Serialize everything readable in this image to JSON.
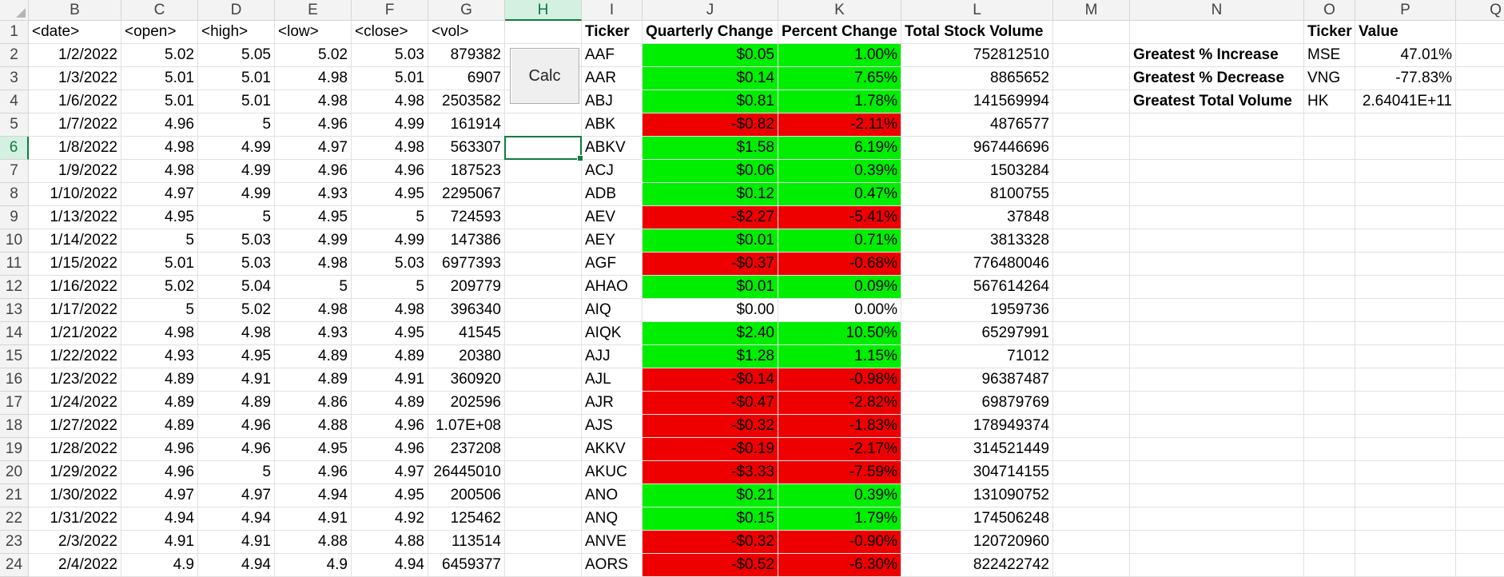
{
  "sheet": {
    "corner": "",
    "columns": [
      "B",
      "C",
      "D",
      "E",
      "F",
      "G",
      "H",
      "I",
      "J",
      "K",
      "L",
      "M",
      "N",
      "O",
      "P",
      "Q"
    ],
    "rows": [
      "1",
      "2",
      "3",
      "4",
      "5",
      "6",
      "7",
      "8",
      "9",
      "10",
      "11",
      "12",
      "13",
      "14",
      "15",
      "16",
      "17",
      "18",
      "19",
      "20",
      "21",
      "22",
      "23",
      "24"
    ],
    "active_column": "H",
    "active_row": "6",
    "active_cell": "H6",
    "headers": {
      "B": "<date>",
      "C": "<open>",
      "D": "<high>",
      "E": "<low>",
      "F": "<close>",
      "G": "<vol>",
      "I": "Ticker",
      "J": "Quarterly Change",
      "K": "Percent Change",
      "L": "Total Stock Volume",
      "O": "Ticker",
      "P": "Value"
    },
    "price_rows": [
      [
        "1/2/2022",
        "5.02",
        "5.05",
        "5.02",
        "5.03",
        "879382"
      ],
      [
        "1/3/2022",
        "5.01",
        "5.01",
        "4.98",
        "5.01",
        "6907"
      ],
      [
        "1/6/2022",
        "5.01",
        "5.01",
        "4.98",
        "4.98",
        "2503582"
      ],
      [
        "1/7/2022",
        "4.96",
        "5",
        "4.96",
        "4.99",
        "161914"
      ],
      [
        "1/8/2022",
        "4.98",
        "4.99",
        "4.97",
        "4.98",
        "563307"
      ],
      [
        "1/9/2022",
        "4.98",
        "4.99",
        "4.96",
        "4.96",
        "187523"
      ],
      [
        "1/10/2022",
        "4.97",
        "4.99",
        "4.93",
        "4.95",
        "2295067"
      ],
      [
        "1/13/2022",
        "4.95",
        "5",
        "4.95",
        "5",
        "724593"
      ],
      [
        "1/14/2022",
        "5",
        "5.03",
        "4.99",
        "4.99",
        "147386"
      ],
      [
        "1/15/2022",
        "5.01",
        "5.03",
        "4.98",
        "5.03",
        "6977393"
      ],
      [
        "1/16/2022",
        "5.02",
        "5.04",
        "5",
        "5",
        "209779"
      ],
      [
        "1/17/2022",
        "5",
        "5.02",
        "4.98",
        "4.98",
        "396340"
      ],
      [
        "1/21/2022",
        "4.98",
        "4.98",
        "4.93",
        "4.95",
        "41545"
      ],
      [
        "1/22/2022",
        "4.93",
        "4.95",
        "4.89",
        "4.89",
        "20380"
      ],
      [
        "1/23/2022",
        "4.89",
        "4.91",
        "4.89",
        "4.91",
        "360920"
      ],
      [
        "1/24/2022",
        "4.89",
        "4.89",
        "4.86",
        "4.89",
        "202596"
      ],
      [
        "1/27/2022",
        "4.89",
        "4.96",
        "4.88",
        "4.96",
        "1.07E+08"
      ],
      [
        "1/28/2022",
        "4.96",
        "4.96",
        "4.95",
        "4.96",
        "237208"
      ],
      [
        "1/29/2022",
        "4.96",
        "5",
        "4.96",
        "4.97",
        "26445010"
      ],
      [
        "1/30/2022",
        "4.97",
        "4.97",
        "4.94",
        "4.95",
        "200506"
      ],
      [
        "1/31/2022",
        "4.94",
        "4.94",
        "4.91",
        "4.92",
        "125462"
      ],
      [
        "2/3/2022",
        "4.91",
        "4.91",
        "4.88",
        "4.88",
        "113514"
      ],
      [
        "2/4/2022",
        "4.9",
        "4.94",
        "4.9",
        "4.94",
        "6459377"
      ]
    ],
    "summary_rows": [
      {
        "ticker": "AAF",
        "change": "$0.05",
        "percent": "1.00%",
        "volume": "752812510",
        "status": "pos"
      },
      {
        "ticker": "AAR",
        "change": "$0.14",
        "percent": "7.65%",
        "volume": "8865652",
        "status": "pos"
      },
      {
        "ticker": "ABJ",
        "change": "$0.81",
        "percent": "1.78%",
        "volume": "141569994",
        "status": "pos"
      },
      {
        "ticker": "ABK",
        "change": "-$0.82",
        "percent": "-2.11%",
        "volume": "4876577",
        "status": "neg"
      },
      {
        "ticker": "ABKV",
        "change": "$1.58",
        "percent": "6.19%",
        "volume": "967446696",
        "status": "pos"
      },
      {
        "ticker": "ACJ",
        "change": "$0.06",
        "percent": "0.39%",
        "volume": "1503284",
        "status": "pos"
      },
      {
        "ticker": "ADB",
        "change": "$0.12",
        "percent": "0.47%",
        "volume": "8100755",
        "status": "pos"
      },
      {
        "ticker": "AEV",
        "change": "-$2.27",
        "percent": "-5.41%",
        "volume": "37848",
        "status": "neg"
      },
      {
        "ticker": "AEY",
        "change": "$0.01",
        "percent": "0.71%",
        "volume": "3813328",
        "status": "pos"
      },
      {
        "ticker": "AGF",
        "change": "-$0.37",
        "percent": "-0.68%",
        "volume": "776480046",
        "status": "neg"
      },
      {
        "ticker": "AHAO",
        "change": "$0.01",
        "percent": "0.09%",
        "volume": "567614264",
        "status": "pos"
      },
      {
        "ticker": "AIQ",
        "change": "$0.00",
        "percent": "0.00%",
        "volume": "1959736",
        "status": "none"
      },
      {
        "ticker": "AIQK",
        "change": "$2.40",
        "percent": "10.50%",
        "volume": "65297991",
        "status": "pos"
      },
      {
        "ticker": "AJJ",
        "change": "$1.28",
        "percent": "1.15%",
        "volume": "71012",
        "status": "pos"
      },
      {
        "ticker": "AJL",
        "change": "-$0.14",
        "percent": "-0.98%",
        "volume": "96387487",
        "status": "neg"
      },
      {
        "ticker": "AJR",
        "change": "-$0.47",
        "percent": "-2.82%",
        "volume": "69879769",
        "status": "neg"
      },
      {
        "ticker": "AJS",
        "change": "-$0.32",
        "percent": "-1.83%",
        "volume": "178949374",
        "status": "neg"
      },
      {
        "ticker": "AKKV",
        "change": "-$0.19",
        "percent": "-2.17%",
        "volume": "314521449",
        "status": "neg"
      },
      {
        "ticker": "AKUC",
        "change": "-$3.33",
        "percent": "-7.59%",
        "volume": "304714155",
        "status": "neg"
      },
      {
        "ticker": "ANO",
        "change": "$0.21",
        "percent": "0.39%",
        "volume": "131090752",
        "status": "pos"
      },
      {
        "ticker": "ANQ",
        "change": "$0.15",
        "percent": "1.79%",
        "volume": "174506248",
        "status": "pos"
      },
      {
        "ticker": "ANVE",
        "change": "-$0.32",
        "percent": "-0.90%",
        "volume": "120720960",
        "status": "neg"
      },
      {
        "ticker": "AORS",
        "change": "-$0.52",
        "percent": "-6.30%",
        "volume": "822422742",
        "status": "neg"
      }
    ],
    "greatest": [
      {
        "label": "Greatest % Increase",
        "ticker": "MSE",
        "value": "47.01%"
      },
      {
        "label": "Greatest % Decrease",
        "ticker": "VNG",
        "value": "-77.83%"
      },
      {
        "label": "Greatest Total Volume",
        "ticker": "HK",
        "value": "2.64041E+11"
      }
    ]
  },
  "calc_button": {
    "label": "Calc"
  },
  "colors": {
    "positive": "#00ee00",
    "negative": "#ee0000",
    "selection": "#107c41"
  }
}
